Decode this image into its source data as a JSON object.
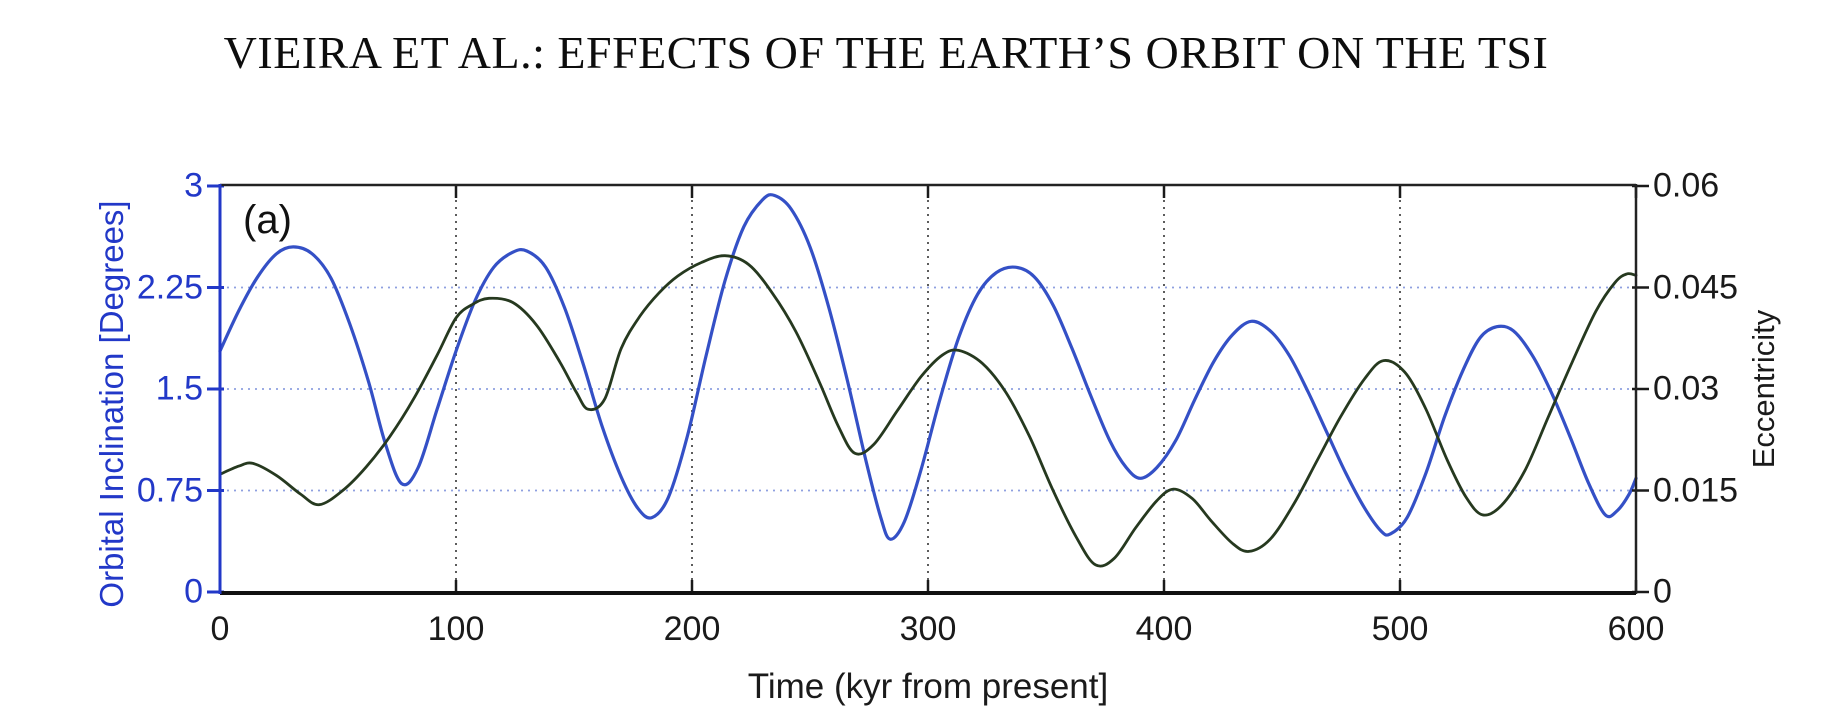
{
  "header": {
    "running_title": "VIEIRA ET AL.: EFFECTS OF THE EARTH’S ORBIT ON THE TSI"
  },
  "chart_data": {
    "type": "line",
    "panel_label": "(a)",
    "xlabel": "Time (kyr from present]",
    "xlim": [
      0,
      600
    ],
    "x_tick_labels": [
      "0",
      "100",
      "200",
      "300",
      "400",
      "500",
      "600"
    ],
    "x_tick_values": [
      0,
      100,
      200,
      300,
      400,
      500,
      600
    ],
    "left_axis": {
      "label": "Orbital Inclination [Degrees]",
      "lim": [
        0,
        3
      ],
      "tick_labels": [
        "3",
        "2.25",
        "1.5",
        "0.75",
        "0"
      ],
      "tick_values": [
        3,
        2.25,
        1.5,
        0.75,
        0
      ],
      "color": "#2238c8"
    },
    "right_axis": {
      "label": "Eccentricity",
      "lim": [
        0,
        0.06
      ],
      "tick_labels": [
        "0.06",
        "0.045",
        "0.03",
        "0.015",
        "0"
      ],
      "tick_values": [
        0.06,
        0.045,
        0.03,
        0.015,
        0
      ],
      "color": "#1a1a1a"
    },
    "grid": {
      "horizontal_left_values": [
        2.25,
        1.5,
        0.75
      ],
      "horizontal_color": "#8fa0e0",
      "vertical_x_values": [
        100,
        200,
        300,
        400,
        500
      ],
      "vertical_color": "#4a4a4a",
      "style": "dotted"
    },
    "series": [
      {
        "name": "orbital-inclination",
        "axis": "left",
        "color": "#3450c6",
        "points": [
          [
            0,
            1.78
          ],
          [
            8,
            2.08
          ],
          [
            16,
            2.33
          ],
          [
            24,
            2.5
          ],
          [
            31,
            2.55
          ],
          [
            39,
            2.5
          ],
          [
            47,
            2.32
          ],
          [
            55,
            1.98
          ],
          [
            63,
            1.55
          ],
          [
            70,
            1.1
          ],
          [
            77,
            0.8
          ],
          [
            84,
            0.92
          ],
          [
            92,
            1.35
          ],
          [
            100,
            1.78
          ],
          [
            108,
            2.15
          ],
          [
            116,
            2.4
          ],
          [
            124,
            2.51
          ],
          [
            130,
            2.52
          ],
          [
            138,
            2.4
          ],
          [
            146,
            2.1
          ],
          [
            154,
            1.68
          ],
          [
            162,
            1.22
          ],
          [
            170,
            0.85
          ],
          [
            177,
            0.62
          ],
          [
            183,
            0.55
          ],
          [
            190,
            0.7
          ],
          [
            198,
            1.15
          ],
          [
            206,
            1.75
          ],
          [
            214,
            2.3
          ],
          [
            222,
            2.7
          ],
          [
            230,
            2.9
          ],
          [
            235,
            2.93
          ],
          [
            242,
            2.83
          ],
          [
            250,
            2.55
          ],
          [
            258,
            2.1
          ],
          [
            266,
            1.55
          ],
          [
            274,
            0.95
          ],
          [
            280,
            0.55
          ],
          [
            284,
            0.39
          ],
          [
            290,
            0.52
          ],
          [
            297,
            0.9
          ],
          [
            305,
            1.42
          ],
          [
            313,
            1.88
          ],
          [
            321,
            2.2
          ],
          [
            329,
            2.36
          ],
          [
            337,
            2.4
          ],
          [
            345,
            2.33
          ],
          [
            353,
            2.12
          ],
          [
            361,
            1.8
          ],
          [
            369,
            1.45
          ],
          [
            377,
            1.12
          ],
          [
            384,
            0.92
          ],
          [
            390,
            0.84
          ],
          [
            397,
            0.92
          ],
          [
            405,
            1.12
          ],
          [
            413,
            1.42
          ],
          [
            421,
            1.7
          ],
          [
            429,
            1.9
          ],
          [
            437,
            2.0
          ],
          [
            445,
            1.93
          ],
          [
            453,
            1.75
          ],
          [
            461,
            1.48
          ],
          [
            469,
            1.18
          ],
          [
            477,
            0.88
          ],
          [
            485,
            0.62
          ],
          [
            492,
            0.45
          ],
          [
            496,
            0.43
          ],
          [
            503,
            0.55
          ],
          [
            511,
            0.88
          ],
          [
            519,
            1.3
          ],
          [
            527,
            1.65
          ],
          [
            534,
            1.88
          ],
          [
            541,
            1.96
          ],
          [
            548,
            1.93
          ],
          [
            556,
            1.75
          ],
          [
            564,
            1.48
          ],
          [
            572,
            1.15
          ],
          [
            580,
            0.8
          ],
          [
            587,
            0.57
          ],
          [
            592,
            0.6
          ],
          [
            597,
            0.72
          ],
          [
            600,
            0.84
          ]
        ]
      },
      {
        "name": "eccentricity",
        "axis": "right",
        "color": "#26391f",
        "points": [
          [
            0,
            0.0174
          ],
          [
            8,
            0.0186
          ],
          [
            14,
            0.019
          ],
          [
            24,
            0.0172
          ],
          [
            34,
            0.0145
          ],
          [
            42,
            0.0129
          ],
          [
            52,
            0.015
          ],
          [
            62,
            0.0185
          ],
          [
            72,
            0.023
          ],
          [
            82,
            0.0285
          ],
          [
            92,
            0.035
          ],
          [
            100,
            0.0405
          ],
          [
            107,
            0.0425
          ],
          [
            114,
            0.0434
          ],
          [
            124,
            0.0428
          ],
          [
            134,
            0.0395
          ],
          [
            144,
            0.034
          ],
          [
            151,
            0.0295
          ],
          [
            156,
            0.027
          ],
          [
            163,
            0.0285
          ],
          [
            170,
            0.036
          ],
          [
            178,
            0.0408
          ],
          [
            186,
            0.0442
          ],
          [
            194,
            0.0467
          ],
          [
            204,
            0.0487
          ],
          [
            214,
            0.0497
          ],
          [
            224,
            0.0484
          ],
          [
            234,
            0.0442
          ],
          [
            244,
            0.0385
          ],
          [
            254,
            0.031
          ],
          [
            262,
            0.0245
          ],
          [
            269,
            0.0205
          ],
          [
            277,
            0.0218
          ],
          [
            287,
            0.0268
          ],
          [
            297,
            0.0318
          ],
          [
            306,
            0.035
          ],
          [
            313,
            0.0357
          ],
          [
            323,
            0.0338
          ],
          [
            333,
            0.0295
          ],
          [
            343,
            0.023
          ],
          [
            353,
            0.015
          ],
          [
            363,
            0.008
          ],
          [
            371,
            0.004
          ],
          [
            379,
            0.005
          ],
          [
            388,
            0.0095
          ],
          [
            397,
            0.0135
          ],
          [
            404,
            0.0152
          ],
          [
            412,
            0.0138
          ],
          [
            420,
            0.0105
          ],
          [
            429,
            0.0072
          ],
          [
            436,
            0.006
          ],
          [
            445,
            0.0078
          ],
          [
            455,
            0.013
          ],
          [
            465,
            0.0195
          ],
          [
            475,
            0.026
          ],
          [
            485,
            0.0315
          ],
          [
            493,
            0.0342
          ],
          [
            502,
            0.0325
          ],
          [
            511,
            0.027
          ],
          [
            520,
            0.0195
          ],
          [
            528,
            0.014
          ],
          [
            535,
            0.0114
          ],
          [
            543,
            0.0128
          ],
          [
            553,
            0.018
          ],
          [
            563,
            0.026
          ],
          [
            573,
            0.034
          ],
          [
            583,
            0.0415
          ],
          [
            591,
            0.0457
          ],
          [
            596,
            0.047
          ],
          [
            600,
            0.0468
          ]
        ]
      }
    ]
  }
}
